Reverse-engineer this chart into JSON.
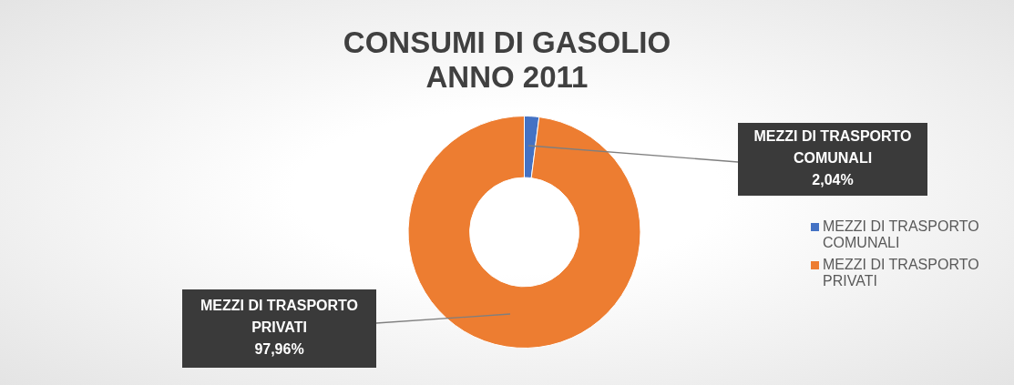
{
  "chart_data": {
    "type": "donut",
    "title": "CONSUMI DI GASOLIO\nANNO 2011",
    "categories": [
      "MEZZI DI TRASPORTO COMUNALI",
      "MEZZI DI TRASPORTO PRIVATI"
    ],
    "values": [
      2.04,
      97.96
    ],
    "colors": [
      "#4472c4",
      "#ed7d31"
    ],
    "value_labels": [
      "2,04%",
      "97,96%"
    ],
    "legend": "right"
  }
}
